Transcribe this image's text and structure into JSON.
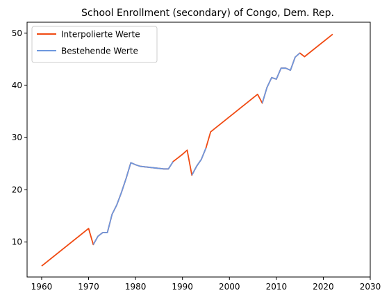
{
  "chart_data": {
    "type": "line",
    "title": "School Enrollment (secondary) of Congo, Dem. Rep.",
    "xlabel": "",
    "ylabel": "",
    "xlim": [
      1956.9,
      2030
    ],
    "ylim": [
      3.3,
      52.1
    ],
    "xticks": [
      1960,
      1970,
      1980,
      1990,
      2000,
      2010,
      2020,
      2030
    ],
    "yticks": [
      10,
      20,
      30,
      40,
      50
    ],
    "grid": false,
    "legend_position": "top-left",
    "series": [
      {
        "name": "Interpolierte Werte",
        "color": "#f04a12",
        "x": [
          1960,
          1970,
          1971,
          1972,
          1973,
          1974,
          1975,
          1976,
          1977,
          1978,
          1979,
          1980,
          1981,
          1982,
          1983,
          1984,
          1985,
          1986,
          1987,
          1988,
          1989,
          1990,
          1991,
          1992,
          1993,
          1994,
          1995,
          1996,
          2006,
          2007,
          2008,
          2009,
          2010,
          2011,
          2012,
          2013,
          2014,
          2015,
          2016,
          2022
        ],
        "y": [
          5.4,
          12.6,
          9.5,
          11.1,
          11.8,
          11.8,
          15.3,
          17.1,
          19.5,
          22.2,
          25.2,
          24.8,
          24.5,
          24.4,
          24.3,
          24.2,
          24.1,
          24.0,
          24.0,
          25.4,
          26.1,
          26.8,
          27.6,
          22.8,
          24.5,
          25.8,
          28.0,
          31.1,
          38.3,
          36.6,
          39.6,
          41.5,
          41.2,
          43.3,
          43.3,
          42.9,
          45.4,
          46.2,
          45.5,
          49.8
        ]
      },
      {
        "name": "Bestehende Werte",
        "color": "#6d97de",
        "segments": [
          {
            "x": [
              1971,
              1972,
              1973,
              1974,
              1975,
              1976,
              1977,
              1978,
              1979,
              1980,
              1981,
              1982,
              1983,
              1984,
              1985,
              1986,
              1987,
              1988
            ],
            "y": [
              9.5,
              11.1,
              11.8,
              11.8,
              15.3,
              17.1,
              19.5,
              22.2,
              25.2,
              24.8,
              24.5,
              24.4,
              24.3,
              24.2,
              24.1,
              24.0,
              24.0,
              25.4
            ]
          },
          {
            "x": [
              1992,
              1993,
              1994,
              1995
            ],
            "y": [
              22.8,
              24.5,
              25.8,
              28.0
            ]
          },
          {
            "x": [
              2007,
              2008,
              2009,
              2010,
              2011,
              2012,
              2013,
              2014,
              2015
            ],
            "y": [
              36.6,
              39.6,
              41.5,
              41.2,
              43.3,
              43.3,
              42.9,
              45.4,
              46.2
            ]
          }
        ]
      }
    ]
  }
}
